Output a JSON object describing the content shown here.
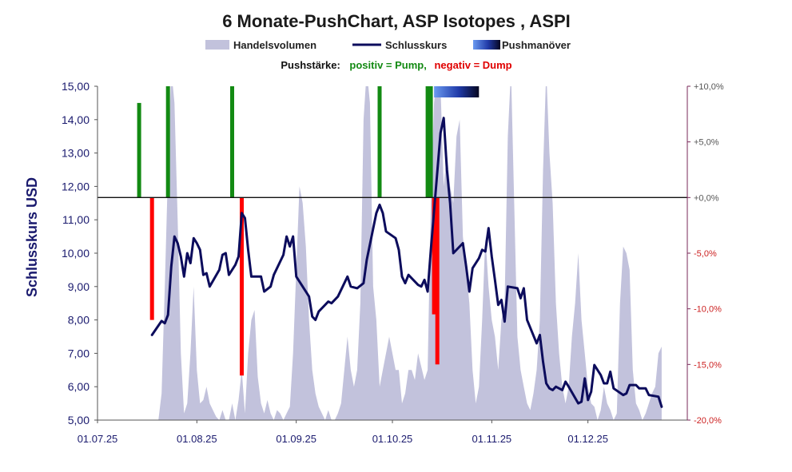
{
  "chart_data": {
    "type": "line",
    "title": "6 Monate-PushChart, ASP Isotopes , ASPI",
    "ylabel": "Schlusskurs USD",
    "legend": [
      {
        "label": "Handelsvolumen",
        "color": "#c2c2dc"
      },
      {
        "label": "Schlusskurs",
        "color": "#0c0c5c"
      },
      {
        "label": "Pushmanöver",
        "color": "#3a5fd8"
      }
    ],
    "push_legend": {
      "prefix": "Pushstärke:",
      "positive": "positiv = Pump,",
      "negative": "negativ = Dump",
      "positive_color": "#138a13",
      "negative_color": "#e00000"
    },
    "colors": {
      "price": "#0c0c5c",
      "volume": "#c2c2dc",
      "pump": "#138a13",
      "dump": "#ff0000",
      "right_axis": "#7a2a5a"
    },
    "ylim": [
      5,
      15
    ],
    "yticks": [
      "5,00",
      "6,00",
      "7,00",
      "8,00",
      "9,00",
      "10,00",
      "11,00",
      "12,00",
      "13,00",
      "14,00",
      "15,00"
    ],
    "y2lim": [
      -20,
      10
    ],
    "y2ticks": [
      {
        "value": -20,
        "label": "-20,0%"
      },
      {
        "value": -15,
        "label": "-15,0%"
      },
      {
        "value": -10,
        "label": "-10,0%"
      },
      {
        "value": -5,
        "label": "-5,0%"
      },
      {
        "value": 0,
        "label": "+0,0%"
      },
      {
        "value": 5,
        "label": "+5,0%"
      },
      {
        "value": 10,
        "label": "+10,0%"
      }
    ],
    "xlim": [
      0,
      184
    ],
    "xticks": [
      {
        "day": 0,
        "label": "01.07.25"
      },
      {
        "day": 31,
        "label": "01.08.25"
      },
      {
        "day": 62,
        "label": "01.09.25"
      },
      {
        "day": 92,
        "label": "01.10.25"
      },
      {
        "day": 123,
        "label": "01.11.25"
      },
      {
        "day": 153,
        "label": "01.12.25"
      }
    ],
    "price": [
      [
        17,
        7.55
      ],
      [
        20,
        7.97
      ],
      [
        21,
        7.9
      ],
      [
        22,
        8.15
      ],
      [
        23,
        9.6
      ],
      [
        24,
        10.5
      ],
      [
        25,
        10.3
      ],
      [
        26,
        9.9
      ],
      [
        27,
        9.3
      ],
      [
        28,
        10.0
      ],
      [
        29,
        9.7
      ],
      [
        30,
        10.45
      ],
      [
        31,
        10.3
      ],
      [
        32,
        10.1
      ],
      [
        33,
        9.35
      ],
      [
        34,
        9.4
      ],
      [
        35,
        9.0
      ],
      [
        38,
        9.5
      ],
      [
        39,
        9.95
      ],
      [
        40,
        10.0
      ],
      [
        41,
        9.35
      ],
      [
        43,
        9.65
      ],
      [
        44,
        9.9
      ],
      [
        45,
        11.2
      ],
      [
        46,
        11.05
      ],
      [
        47,
        10.1
      ],
      [
        48,
        9.3
      ],
      [
        51,
        9.3
      ],
      [
        52,
        8.85
      ],
      [
        54,
        9.0
      ],
      [
        55,
        9.35
      ],
      [
        58,
        9.95
      ],
      [
        59,
        10.5
      ],
      [
        60,
        10.2
      ],
      [
        61,
        10.5
      ],
      [
        62,
        9.3
      ],
      [
        66,
        8.7
      ],
      [
        67,
        8.1
      ],
      [
        68,
        8.0
      ],
      [
        69,
        8.25
      ],
      [
        72,
        8.55
      ],
      [
        73,
        8.5
      ],
      [
        75,
        8.7
      ],
      [
        78,
        9.3
      ],
      [
        79,
        9.0
      ],
      [
        81,
        8.95
      ],
      [
        83,
        9.1
      ],
      [
        84,
        9.8
      ],
      [
        87,
        11.2
      ],
      [
        88,
        11.45
      ],
      [
        89,
        11.2
      ],
      [
        90,
        10.65
      ],
      [
        93,
        10.45
      ],
      [
        94,
        10.1
      ],
      [
        95,
        9.3
      ],
      [
        96,
        9.1
      ],
      [
        97,
        9.35
      ],
      [
        100,
        9.05
      ],
      [
        101,
        9.0
      ],
      [
        102,
        9.2
      ],
      [
        103,
        8.85
      ],
      [
        104,
        10.1
      ],
      [
        107,
        13.6
      ],
      [
        108,
        14.05
      ],
      [
        109,
        12.5
      ],
      [
        110,
        11.5
      ],
      [
        111,
        10.0
      ],
      [
        114,
        10.3
      ],
      [
        115,
        9.6
      ],
      [
        116,
        8.85
      ],
      [
        117,
        9.55
      ],
      [
        119,
        9.85
      ],
      [
        120,
        10.1
      ],
      [
        121,
        10.05
      ],
      [
        122,
        10.75
      ],
      [
        123,
        9.9
      ],
      [
        124,
        9.2
      ],
      [
        125,
        8.45
      ],
      [
        126,
        8.6
      ],
      [
        127,
        7.95
      ],
      [
        128,
        9.0
      ],
      [
        131,
        8.95
      ],
      [
        132,
        8.65
      ],
      [
        133,
        8.95
      ],
      [
        134,
        8.0
      ],
      [
        137,
        7.3
      ],
      [
        138,
        7.55
      ],
      [
        139,
        6.75
      ],
      [
        140,
        6.1
      ],
      [
        141,
        5.95
      ],
      [
        142,
        5.9
      ],
      [
        143,
        6.0
      ],
      [
        145,
        5.9
      ],
      [
        146,
        6.15
      ],
      [
        147,
        6.0
      ],
      [
        150,
        5.5
      ],
      [
        151,
        5.55
      ],
      [
        152,
        6.25
      ],
      [
        153,
        5.6
      ],
      [
        154,
        5.85
      ],
      [
        155,
        6.65
      ],
      [
        156,
        6.5
      ],
      [
        157,
        6.35
      ],
      [
        158,
        6.1
      ],
      [
        159,
        6.1
      ],
      [
        160,
        6.45
      ],
      [
        161,
        5.95
      ],
      [
        164,
        5.75
      ],
      [
        165,
        5.8
      ],
      [
        166,
        6.05
      ],
      [
        168,
        6.05
      ],
      [
        169,
        5.95
      ],
      [
        171,
        5.95
      ],
      [
        172,
        5.75
      ],
      [
        175,
        5.7
      ],
      [
        176,
        5.4
      ]
    ],
    "volume": [
      [
        0,
        5.0
      ],
      [
        19,
        5.0
      ],
      [
        20,
        5.8
      ],
      [
        21,
        9.0
      ],
      [
        22,
        12.5
      ],
      [
        23,
        15.5
      ],
      [
        24,
        14.5
      ],
      [
        25,
        11.0
      ],
      [
        26,
        7.0
      ],
      [
        27,
        5.2
      ],
      [
        28,
        5.5
      ],
      [
        29,
        7.0
      ],
      [
        30,
        9.0
      ],
      [
        31,
        6.5
      ],
      [
        32,
        5.5
      ],
      [
        33,
        5.6
      ],
      [
        34,
        6.0
      ],
      [
        35,
        5.5
      ],
      [
        36,
        5.3
      ],
      [
        37,
        5.1
      ],
      [
        38,
        5.0
      ],
      [
        39,
        5.3
      ],
      [
        40,
        5.0
      ],
      [
        41,
        5.0
      ],
      [
        42,
        5.5
      ],
      [
        43,
        5.0
      ],
      [
        44,
        5.6
      ],
      [
        45,
        6.5
      ],
      [
        46,
        5.2
      ],
      [
        47,
        7.0
      ],
      [
        48,
        8.0
      ],
      [
        49,
        8.3
      ],
      [
        50,
        6.3
      ],
      [
        51,
        5.5
      ],
      [
        52,
        5.2
      ],
      [
        53,
        5.6
      ],
      [
        54,
        5.2
      ],
      [
        55,
        5.0
      ],
      [
        56,
        5.3
      ],
      [
        57,
        5.2
      ],
      [
        58,
        5.0
      ],
      [
        59,
        5.2
      ],
      [
        60,
        5.4
      ],
      [
        61,
        7.0
      ],
      [
        62,
        9.5
      ],
      [
        63,
        12.0
      ],
      [
        64,
        11.5
      ],
      [
        65,
        10.2
      ],
      [
        66,
        8.0
      ],
      [
        67,
        6.5
      ],
      [
        68,
        5.8
      ],
      [
        69,
        5.4
      ],
      [
        70,
        5.2
      ],
      [
        71,
        5.0
      ],
      [
        72,
        5.3
      ],
      [
        73,
        5.0
      ],
      [
        74,
        5.0
      ],
      [
        75,
        5.2
      ],
      [
        76,
        5.5
      ],
      [
        77,
        6.5
      ],
      [
        78,
        7.5
      ],
      [
        79,
        6.5
      ],
      [
        80,
        6.0
      ],
      [
        81,
        6.5
      ],
      [
        82,
        8.5
      ],
      [
        83,
        14.0
      ],
      [
        84,
        15.5
      ],
      [
        85,
        14.5
      ],
      [
        86,
        9.0
      ],
      [
        87,
        8.0
      ],
      [
        88,
        6.0
      ],
      [
        89,
        6.5
      ],
      [
        90,
        7.0
      ],
      [
        91,
        7.5
      ],
      [
        92,
        7.0
      ],
      [
        93,
        6.5
      ],
      [
        94,
        6.5
      ],
      [
        95,
        5.5
      ],
      [
        96,
        5.8
      ],
      [
        97,
        6.5
      ],
      [
        98,
        6.5
      ],
      [
        99,
        6.2
      ],
      [
        100,
        7.0
      ],
      [
        101,
        6.6
      ],
      [
        102,
        6.2
      ],
      [
        103,
        6.5
      ],
      [
        104,
        11.5
      ],
      [
        105,
        14.5
      ],
      [
        106,
        15.5
      ],
      [
        107,
        15.0
      ],
      [
        108,
        12.0
      ],
      [
        109,
        13.0
      ],
      [
        110,
        12.0
      ],
      [
        111,
        11.5
      ],
      [
        112,
        13.5
      ],
      [
        113,
        14.0
      ],
      [
        114,
        10.5
      ],
      [
        115,
        9.5
      ],
      [
        116,
        8.5
      ],
      [
        117,
        6.5
      ],
      [
        118,
        5.5
      ],
      [
        119,
        6.0
      ],
      [
        120,
        8.0
      ],
      [
        121,
        10.5
      ],
      [
        122,
        9.0
      ],
      [
        123,
        8.0
      ],
      [
        124,
        7.5
      ],
      [
        125,
        6.5
      ],
      [
        126,
        8.0
      ],
      [
        127,
        8.5
      ],
      [
        128,
        13.5
      ],
      [
        129,
        15.5
      ],
      [
        130,
        11.5
      ],
      [
        131,
        7.5
      ],
      [
        132,
        6.5
      ],
      [
        133,
        6.0
      ],
      [
        134,
        5.5
      ],
      [
        135,
        5.3
      ],
      [
        136,
        5.8
      ],
      [
        137,
        6.5
      ],
      [
        138,
        8.0
      ],
      [
        139,
        12.5
      ],
      [
        140,
        15.5
      ],
      [
        141,
        13.0
      ],
      [
        142,
        11.5
      ],
      [
        143,
        8.5
      ],
      [
        144,
        7.0
      ],
      [
        145,
        6.0
      ],
      [
        146,
        5.5
      ],
      [
        147,
        6.0
      ],
      [
        148,
        7.5
      ],
      [
        149,
        8.5
      ],
      [
        150,
        10.0
      ],
      [
        151,
        8.0
      ],
      [
        152,
        7.0
      ],
      [
        153,
        6.0
      ],
      [
        154,
        5.5
      ],
      [
        155,
        5.4
      ],
      [
        156,
        5.0
      ],
      [
        157,
        5.3
      ],
      [
        158,
        6.0
      ],
      [
        159,
        5.5
      ],
      [
        160,
        5.3
      ],
      [
        161,
        5.0
      ],
      [
        162,
        5.2
      ],
      [
        163,
        8.5
      ],
      [
        164,
        10.2
      ],
      [
        165,
        10.0
      ],
      [
        166,
        9.5
      ],
      [
        167,
        6.5
      ],
      [
        168,
        5.5
      ],
      [
        169,
        5.3
      ],
      [
        170,
        5.0
      ],
      [
        171,
        5.2
      ],
      [
        172,
        5.5
      ],
      [
        173,
        5.8
      ],
      [
        174,
        6.0
      ],
      [
        175,
        7.0
      ],
      [
        176,
        7.2
      ]
    ],
    "pushes": [
      {
        "day": 13,
        "pct": 8.5
      },
      {
        "day": 17,
        "pct": -11.0
      },
      {
        "day": 22,
        "pct": 10.0
      },
      {
        "day": 42,
        "pct": 10.0
      },
      {
        "day": 45,
        "pct": -16.0
      },
      {
        "day": 88,
        "pct": 10.0
      },
      {
        "day": 103,
        "pct": 10.0
      },
      {
        "day": 104,
        "pct": 10.0
      },
      {
        "day": 105,
        "pct": -10.5
      },
      {
        "day": 106,
        "pct": -15.0
      }
    ],
    "push_manoeuvre": {
      "start_day": 105,
      "end_day": 119
    }
  }
}
